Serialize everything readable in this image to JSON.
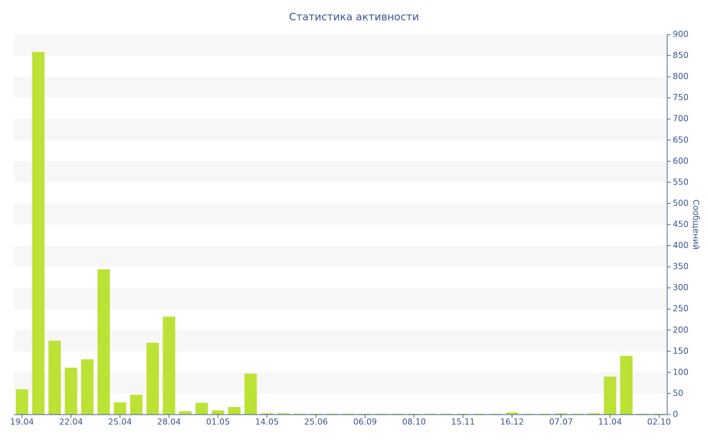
{
  "chart_data": {
    "type": "bar",
    "title": "Статистика активности",
    "y_label": "Сообщений",
    "categories": [
      "19.04",
      null,
      null,
      "22.04",
      null,
      null,
      "25.04",
      null,
      null,
      "28.04",
      null,
      null,
      "01.05",
      null,
      null,
      "14.05",
      null,
      null,
      "25.06",
      null,
      null,
      "06.09",
      null,
      null,
      "08.10",
      null,
      null,
      "15.11",
      null,
      null,
      "16.12",
      null,
      null,
      "07.07",
      null,
      null,
      "11.04",
      null,
      null,
      "02.10"
    ],
    "values": [
      60,
      859,
      175,
      111,
      131,
      344,
      29,
      47,
      170,
      232,
      8,
      28,
      10,
      18,
      97,
      3,
      3,
      2,
      2,
      2,
      2,
      2,
      2,
      2,
      2,
      2,
      2,
      2,
      2,
      2,
      5,
      2,
      2,
      3,
      2,
      3,
      90,
      139,
      2,
      2
    ],
    "color": "#bce236",
    "ylim": [
      0,
      900
    ],
    "yticks": [
      0,
      50,
      100,
      150,
      200,
      250,
      300,
      350,
      400,
      450,
      500,
      550,
      600,
      650,
      700,
      750,
      800,
      850,
      900
    ],
    "grid": true
  }
}
